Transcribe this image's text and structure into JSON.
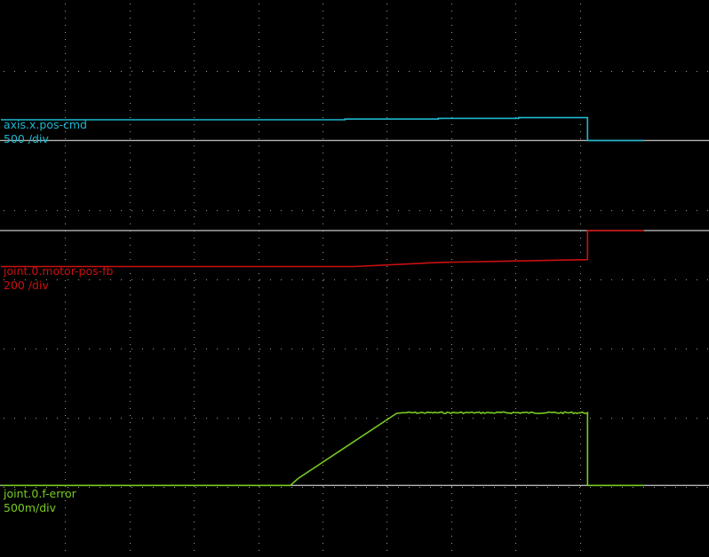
{
  "chart_data": {
    "type": "line",
    "title": "",
    "background": "#000000",
    "grid": {
      "on": true,
      "style": "dotted",
      "color": "#9a9a9a",
      "x_divisions": 10,
      "y_divisions": 8
    },
    "x": {
      "range": [
        0,
        10
      ],
      "unit": "div"
    },
    "series": [
      {
        "name": "axis.x.pos-cmd",
        "scale": "500 /div",
        "color": "#1fb8d0",
        "baseline_color": "#b4b4b4",
        "offset_div": 6,
        "x_div": [
          0,
          5.35,
          5.35,
          6.8,
          6.8,
          8.05,
          8.05,
          9.12,
          9.12,
          10
        ],
        "y_div": [
          0.3,
          0.3,
          0.31,
          0.31,
          0.32,
          0.32,
          0.33,
          0.33,
          0,
          0
        ]
      },
      {
        "name": "joint.0.motor-pos-fb",
        "scale": "200 /div",
        "color": "#cc1010",
        "baseline_color": "#b4b4b4",
        "offset_div": 4.7,
        "x_div": [
          0,
          5.5,
          6.8,
          9.12,
          9.12,
          10
        ],
        "y_div": [
          -0.52,
          -0.52,
          -0.46,
          -0.42,
          0,
          0
        ],
        "clip_above_offset": true
      },
      {
        "name": "joint.0.f-error",
        "scale": "500m/div",
        "color": "#77cc22",
        "baseline_color": "#b4b4b4",
        "offset_div": 1.02,
        "x_div": [
          0,
          4.5,
          4.62,
          6.15,
          6.25,
          9.12,
          9.12,
          10
        ],
        "y_div": [
          0,
          0,
          0.1,
          1.04,
          1.05,
          1.05,
          0,
          0
        ],
        "noise_segment": [
          6.25,
          9.12
        ]
      }
    ]
  }
}
